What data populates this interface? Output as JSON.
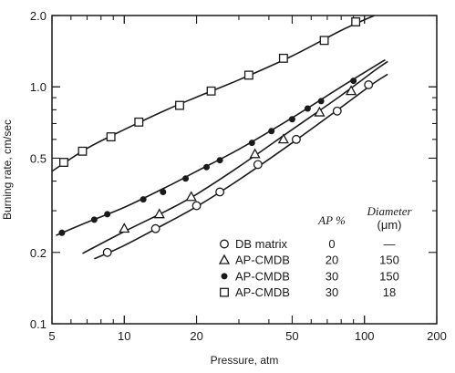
{
  "chart_data": {
    "type": "scatter",
    "xscale": "log",
    "yscale": "log",
    "xlim": [
      5,
      200
    ],
    "ylim": [
      0.1,
      2.0
    ],
    "xlabel": "Pressure, atm",
    "ylabel": "Burning rate, cm/sec",
    "x_ticks": [
      {
        "value": 5,
        "label": "5"
      },
      {
        "value": 10,
        "label": "10"
      },
      {
        "value": 20,
        "label": "20"
      },
      {
        "value": 50,
        "label": "50"
      },
      {
        "value": 100,
        "label": "100"
      },
      {
        "value": 200,
        "label": "200"
      }
    ],
    "y_ticks": [
      {
        "value": 0.1,
        "label": "0.1"
      },
      {
        "value": 0.2,
        "label": "0.2"
      },
      {
        "value": 0.5,
        "label": "0.5"
      },
      {
        "value": 1.0,
        "label": "1.0"
      },
      {
        "value": 2.0,
        "label": "2.0"
      }
    ],
    "grid": false,
    "legend_position": "bottom-right",
    "legend": {
      "col_ap_header": "AP %",
      "col_diameter_header": "Diameter",
      "col_diameter_unit": "(μm)"
    },
    "series": [
      {
        "name": "DB matrix",
        "marker": "open-circle",
        "ap_percent": "0",
        "diameter": "—",
        "x": [
          8.5,
          13.5,
          20,
          25,
          36,
          52,
          77,
          104
        ],
        "y": [
          0.2,
          0.252,
          0.315,
          0.36,
          0.47,
          0.6,
          0.79,
          1.02
        ],
        "curve": {
          "x": [
            7.5,
            10,
            15,
            20,
            30,
            50,
            80,
            110,
            125
          ],
          "y": [
            0.188,
            0.214,
            0.266,
            0.312,
            0.405,
            0.58,
            0.82,
            1.04,
            1.13
          ]
        }
      },
      {
        "name": "AP-CMDB",
        "marker": "open-triangle",
        "ap_percent": "20",
        "diameter": "150",
        "x": [
          10,
          14,
          19,
          35,
          46,
          65,
          88
        ],
        "y": [
          0.252,
          0.29,
          0.343,
          0.52,
          0.6,
          0.78,
          0.96
        ],
        "curve": {
          "x": [
            6.7,
            10,
            15,
            20,
            30,
            50,
            80,
            110,
            125
          ],
          "y": [
            0.198,
            0.245,
            0.3,
            0.352,
            0.46,
            0.66,
            0.92,
            1.17,
            1.28
          ]
        }
      },
      {
        "name": "AP-CMDB",
        "marker": "filled-circle",
        "ap_percent": "30",
        "diameter": "150",
        "x": [
          5.5,
          7.5,
          8.5,
          12,
          14.5,
          18,
          22,
          25,
          34,
          41,
          50,
          58,
          66,
          90
        ],
        "y": [
          0.242,
          0.275,
          0.29,
          0.335,
          0.36,
          0.41,
          0.458,
          0.49,
          0.58,
          0.65,
          0.73,
          0.81,
          0.87,
          1.06
        ],
        "curve": {
          "x": [
            5.2,
            7,
            10,
            15,
            20,
            30,
            50,
            80,
            110,
            122
          ],
          "y": [
            0.236,
            0.268,
            0.31,
            0.378,
            0.44,
            0.545,
            0.74,
            1.0,
            1.22,
            1.3
          ]
        }
      },
      {
        "name": "AP-CMDB",
        "marker": "open-square",
        "ap_percent": "30",
        "diameter": "18",
        "x": [
          5.6,
          6.7,
          8.8,
          11.5,
          17,
          23,
          33,
          46,
          68,
          92
        ],
        "y": [
          0.48,
          0.535,
          0.615,
          0.71,
          0.835,
          0.96,
          1.12,
          1.32,
          1.57,
          1.88
        ],
        "curve": {
          "x": [
            5.0,
            7,
            10,
            15,
            20,
            30,
            50,
            80,
            110
          ],
          "y": [
            0.44,
            0.55,
            0.66,
            0.8,
            0.905,
            1.07,
            1.35,
            1.73,
            2.0
          ]
        }
      }
    ]
  }
}
